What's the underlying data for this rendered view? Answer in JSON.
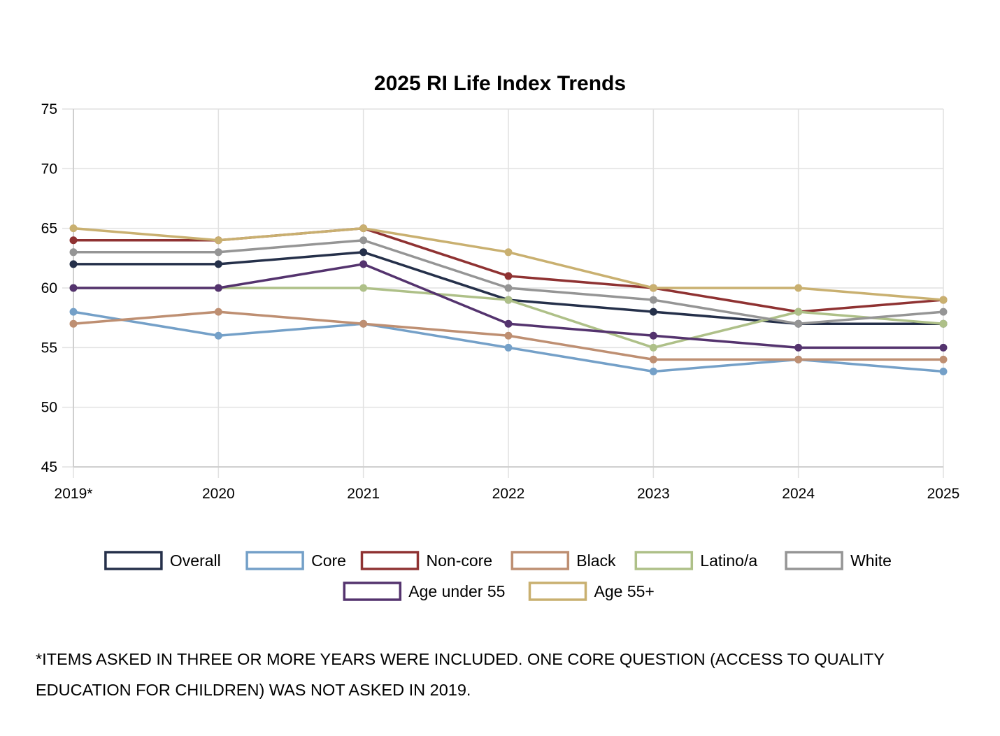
{
  "chart_data": {
    "type": "line",
    "title": "2025 RI Life Index Trends",
    "xlabel": "",
    "ylabel": "",
    "categories": [
      "2019*",
      "2020",
      "2021",
      "2022",
      "2023",
      "2024",
      "2025"
    ],
    "ylim": [
      45,
      75
    ],
    "yticks": [
      45,
      50,
      55,
      60,
      65,
      70,
      75
    ],
    "grid": true,
    "legend_position": "bottom",
    "series": [
      {
        "name": "Overall",
        "color": "#25304a",
        "values": [
          62,
          62,
          63,
          59,
          58,
          57,
          57
        ]
      },
      {
        "name": "Core",
        "color": "#74a0c8",
        "values": [
          58,
          56,
          57,
          55,
          53,
          54,
          53
        ]
      },
      {
        "name": "Non-core",
        "color": "#8f3232",
        "values": [
          64,
          64,
          65,
          61,
          60,
          58,
          59
        ]
      },
      {
        "name": "Black",
        "color": "#be8f72",
        "values": [
          57,
          58,
          57,
          56,
          54,
          54,
          54
        ]
      },
      {
        "name": "Latino/a",
        "color": "#aec088",
        "values": [
          60,
          60,
          60,
          59,
          55,
          58,
          57
        ]
      },
      {
        "name": "White",
        "color": "#959595",
        "values": [
          63,
          63,
          64,
          60,
          59,
          57,
          58
        ]
      },
      {
        "name": "Age under 55",
        "color": "#54336e",
        "values": [
          60,
          60,
          62,
          57,
          56,
          55,
          55
        ]
      },
      {
        "name": "Age 55+",
        "color": "#c9b070",
        "values": [
          65,
          64,
          65,
          63,
          60,
          60,
          59
        ]
      }
    ]
  },
  "footnote": "*ITEMS ASKED IN THREE OR MORE YEARS WERE INCLUDED. ONE CORE QUESTION (ACCESS TO QUALITY EDUCATION FOR CHILDREN) WAS NOT ASKED IN 2019."
}
